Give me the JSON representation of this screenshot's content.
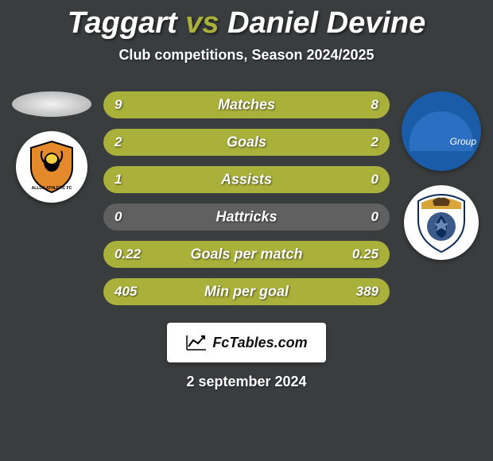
{
  "title": {
    "player1": "Taggart",
    "vs": "vs",
    "player2": "Daniel Devine",
    "accent_color": "#aab13a",
    "text_color": "#ffffff",
    "fontsize": 38
  },
  "subtitle": "Club competitions, Season 2024/2025",
  "background_color": "#3a3d3e",
  "bars": {
    "track_color": "#606060",
    "fill_color": "#aab13a",
    "text_color": "#ffffff",
    "height": 34,
    "radius": 17,
    "rows": [
      {
        "label": "Matches",
        "left": "9",
        "right": "8",
        "left_pct": 52,
        "right_pct": 48
      },
      {
        "label": "Goals",
        "left": "2",
        "right": "2",
        "left_pct": 50,
        "right_pct": 50
      },
      {
        "label": "Assists",
        "left": "1",
        "right": "0",
        "left_pct": 100,
        "right_pct": 0
      },
      {
        "label": "Hattricks",
        "left": "0",
        "right": "0",
        "left_pct": 0,
        "right_pct": 0
      },
      {
        "label": "Goals per match",
        "left": "0.22",
        "right": "0.25",
        "left_pct": 47,
        "right_pct": 53
      },
      {
        "label": "Min per goal",
        "left": "405",
        "right": "389",
        "left_pct": 51,
        "right_pct": 49
      }
    ]
  },
  "brand": "FcTables.com",
  "date": "2 september 2024",
  "left_side": {
    "avatar_type": "placeholder-ellipse",
    "club_name": "alloa-athletic",
    "club_primary": "#e58a2a",
    "club_secondary": "#000000"
  },
  "right_side": {
    "avatar_type": "photo",
    "avatar_bg": "#1b5ca8",
    "club_name": "inverness-ct",
    "club_primary": "#0b2d5b",
    "club_secondary": "#d9a53a"
  }
}
